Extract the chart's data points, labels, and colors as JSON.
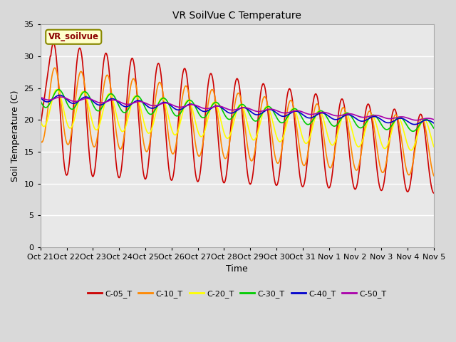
{
  "title": "VR SoilVue C Temperature",
  "xlabel": "Time",
  "ylabel": "Soil Temperature (C)",
  "ylim": [
    0,
    35
  ],
  "yticks": [
    0,
    5,
    10,
    15,
    20,
    25,
    30,
    35
  ],
  "xtick_labels": [
    "Oct 21",
    "Oct 22",
    "Oct 23",
    "Oct 24",
    "Oct 25",
    "Oct 26",
    "Oct 27",
    "Oct 28",
    "Oct 29",
    "Oct 30",
    "Oct 31",
    "Nov 1",
    "Nov 2",
    "Nov 3",
    "Nov 4",
    "Nov 5"
  ],
  "legend_label": "VR_soilvue",
  "series_colors": {
    "C-05_T": "#cc0000",
    "C-10_T": "#ff8800",
    "C-20_T": "#ffff00",
    "C-30_T": "#00cc00",
    "C-40_T": "#0000cc",
    "C-50_T": "#aa00aa"
  },
  "fig_facecolor": "#d9d9d9",
  "ax_facecolor": "#e8e8e8",
  "line_width": 1.2,
  "n_days": 15,
  "pts_per_day": 48
}
